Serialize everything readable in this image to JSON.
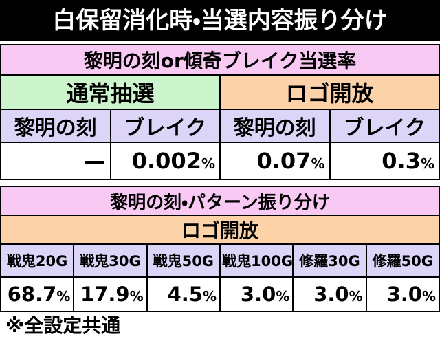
{
  "title": "白保留消化時・当選内容振り分け",
  "table1": {
    "title": "黎明の刻or傾奇ブレイク当選率",
    "groups": [
      "通常抽選",
      "ロゴ開放"
    ],
    "headers": [
      "黎明の刻",
      "ブレイク",
      "黎明の刻",
      "ブレイク"
    ],
    "values": [
      {
        "number": "—"
      },
      {
        "number": "0.002",
        "unit": "%"
      },
      {
        "number": "0.07",
        "unit": "%"
      },
      {
        "number": "0.3",
        "unit": "%"
      }
    ]
  },
  "table2": {
    "title": "黎明の刻・パターン振り分け",
    "group": "ロゴ開放",
    "headers": [
      "戦鬼20G",
      "戦鬼30G",
      "戦鬼50G",
      "戦鬼100G",
      "修羅30G",
      "修羅50G"
    ],
    "values": [
      {
        "number": "68.7",
        "unit": "%"
      },
      {
        "number": "17.9",
        "unit": "%"
      },
      {
        "number": "4.5",
        "unit": "%"
      },
      {
        "number": "3.0",
        "unit": "%"
      },
      {
        "number": "3.0",
        "unit": "%"
      },
      {
        "number": "3.0",
        "unit": "%"
      }
    ]
  },
  "footer": "※全設定共通"
}
